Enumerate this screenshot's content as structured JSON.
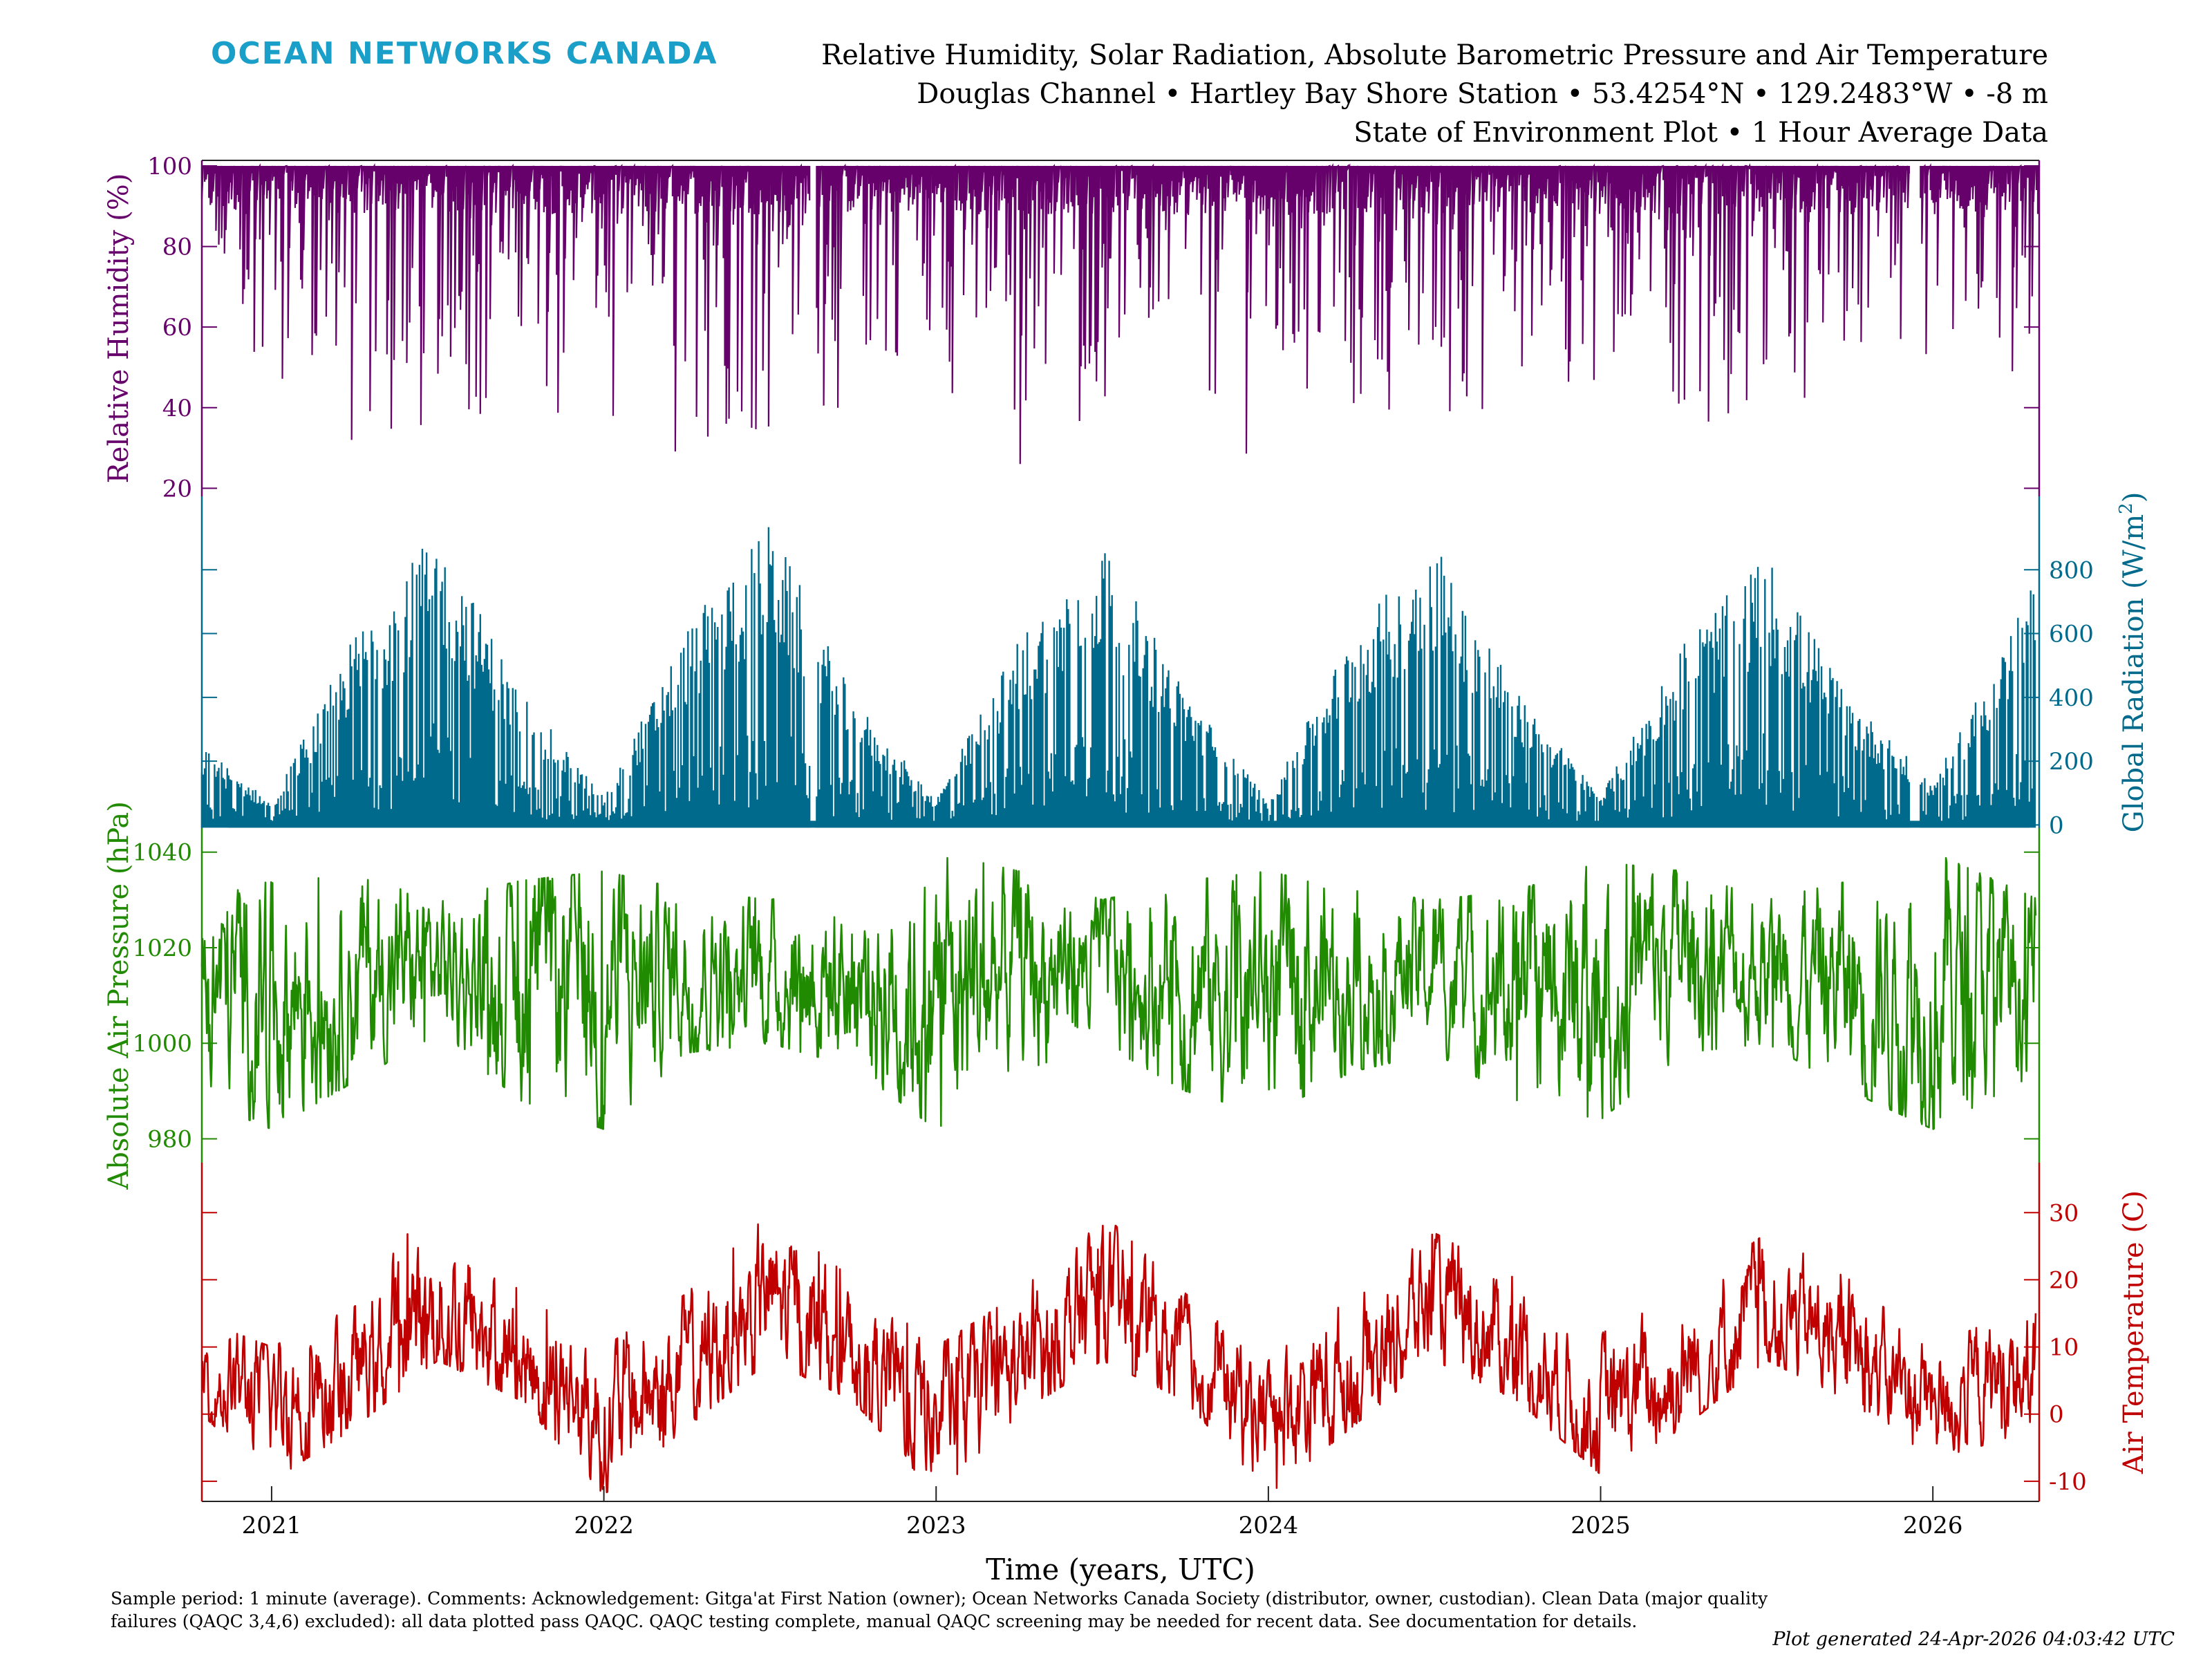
{
  "header": {
    "logo": "OCEAN NETWORKS CANADA",
    "title_line1": "Relative Humidity, Solar Radiation, Absolute Barometric Pressure and Air Temperature",
    "title_line2": "Douglas Channel • Hartley Bay Shore Station • 53.4254°N • 129.2483°W • -8 m",
    "title_line3": "State of Environment Plot • 1 Hour Average Data"
  },
  "footer": {
    "note": "Sample period: 1 minute (average). Comments: Acknowledgement: Gitga'at First Nation (owner); Ocean Networks Canada Society (distributor, owner, custodian). Clean Data (major quality failures (QAQC 3,4,6) excluded): all data plotted pass QAQC. QAQC testing complete, manual QAQC screening may be needed for recent data. See documentation for details.",
    "generated": "Plot generated 24-Apr-2026 04:03:42 UTC"
  },
  "chart_data": {
    "type": "line",
    "x_axis": {
      "label": "Time (years, UTC)",
      "range": [
        2020.79,
        2026.32
      ],
      "tick_labels": [
        "2021",
        "2022",
        "2023",
        "2024",
        "2025",
        "2026"
      ],
      "tick_values": [
        2021,
        2022,
        2023,
        2024,
        2025,
        2026
      ]
    },
    "panels": [
      {
        "name": "humidity",
        "ylabel": "Relative Humidity (%)",
        "axis_side": "left",
        "ylim": [
          18,
          100
        ],
        "ticks": [
          20,
          40,
          60,
          80,
          100
        ],
        "color": "#66006a",
        "style": "spiky_high",
        "series": {
          "x": [
            2020.79,
            2021.0,
            2021.25,
            2021.5,
            2021.75,
            2022.0,
            2022.25,
            2022.5,
            2022.75,
            2023.0,
            2023.25,
            2023.5,
            2023.75,
            2024.0,
            2024.25,
            2024.5,
            2024.75,
            2025.0,
            2025.25,
            2025.5,
            2025.75,
            2026.0,
            2026.32
          ],
          "typical_min": [
            72,
            60,
            45,
            55,
            60,
            58,
            50,
            55,
            60,
            62,
            52,
            55,
            60,
            55,
            50,
            55,
            60,
            62,
            50,
            55,
            60,
            62,
            60
          ],
          "extreme_min": [
            35,
            45,
            22,
            35,
            40,
            30,
            25,
            35,
            40,
            45,
            24,
            40,
            45,
            22,
            20,
            35,
            40,
            45,
            35,
            40,
            45,
            48,
            40
          ],
          "max": [
            100,
            100,
            100,
            100,
            100,
            100,
            100,
            100,
            100,
            100,
            100,
            100,
            100,
            100,
            100,
            100,
            100,
            100,
            100,
            100,
            100,
            100,
            100
          ]
        }
      },
      {
        "name": "solar",
        "ylabel": "Global Radiation (W/m²)",
        "ylabel_main": "Global Radiation (W/m",
        "ylabel_sup": "2",
        "ylabel_end": ")",
        "axis_side": "right",
        "ylim": [
          -10,
          1000
        ],
        "ticks": [
          0,
          200,
          400,
          600,
          800
        ],
        "color": "#006a8c",
        "style": "seasonal_bars",
        "series": {
          "x": [
            2020.79,
            2021.0,
            2021.25,
            2021.5,
            2021.75,
            2022.0,
            2022.25,
            2022.5,
            2022.75,
            2023.0,
            2023.25,
            2023.5,
            2023.75,
            2024.0,
            2024.25,
            2024.5,
            2024.75,
            2025.0,
            2025.25,
            2025.5,
            2025.75,
            2026.0,
            2026.32
          ],
          "daily_peak": [
            250,
            70,
            600,
            930,
            420,
            90,
            620,
            950,
            400,
            80,
            590,
            900,
            420,
            80,
            600,
            900,
            420,
            90,
            580,
            850,
            400,
            130,
            790
          ]
        }
      },
      {
        "name": "pressure",
        "ylabel": "Absolute Air Pressure (hPa)",
        "axis_side": "left",
        "ylim": [
          975,
          1043
        ],
        "ticks": [
          980,
          1000,
          1020,
          1040
        ],
        "color": "#208a00",
        "style": "wiggle",
        "series": {
          "x": [
            2020.79,
            2021.0,
            2021.25,
            2021.5,
            2021.75,
            2022.0,
            2022.25,
            2022.5,
            2022.75,
            2023.0,
            2023.25,
            2023.5,
            2023.75,
            2024.0,
            2024.25,
            2024.5,
            2024.75,
            2025.0,
            2025.25,
            2025.5,
            2025.75,
            2026.0,
            2026.32
          ],
          "mean": [
            1012,
            1010,
            1014,
            1016,
            1012,
            1012,
            1016,
            1015,
            1014,
            1010,
            1016,
            1016,
            1012,
            1010,
            1015,
            1015,
            1012,
            1010,
            1018,
            1016,
            1012,
            1012,
            1014
          ],
          "min": [
            988,
            982,
            992,
            1002,
            988,
            982,
            998,
            1000,
            995,
            982,
            994,
            1000,
            990,
            985,
            994,
            998,
            988,
            984,
            998,
            1000,
            990,
            982,
            994
          ],
          "max": [
            1030,
            1034,
            1035,
            1030,
            1034,
            1036,
            1032,
            1030,
            1034,
            1040,
            1036,
            1030,
            1034,
            1036,
            1032,
            1030,
            1032,
            1038,
            1036,
            1030,
            1034,
            1040,
            1030
          ]
        }
      },
      {
        "name": "temperature",
        "ylabel": "Air Temperature (C)",
        "axis_side": "right",
        "ylim": [
          -13,
          36
        ],
        "ticks": [
          -10,
          0,
          10,
          20,
          30
        ],
        "color": "#c00000",
        "style": "wiggle",
        "series": {
          "x": [
            2020.79,
            2021.0,
            2021.25,
            2021.5,
            2021.75,
            2022.0,
            2022.25,
            2022.5,
            2022.75,
            2023.0,
            2023.25,
            2023.5,
            2023.75,
            2024.0,
            2024.25,
            2024.5,
            2024.75,
            2025.0,
            2025.25,
            2025.5,
            2025.75,
            2026.0,
            2026.32
          ],
          "mean": [
            6,
            2,
            5,
            16,
            8,
            -1,
            6,
            17,
            9,
            -1,
            7,
            17,
            8,
            0,
            6,
            17,
            9,
            0,
            6,
            16,
            9,
            2,
            6
          ],
          "min": [
            0,
            -10,
            -2,
            8,
            2,
            -12,
            -2,
            8,
            2,
            -12,
            0,
            8,
            2,
            -12,
            -2,
            8,
            2,
            -9,
            -2,
            8,
            2,
            -7,
            -2
          ],
          "max": [
            14,
            10,
            16,
            33,
            18,
            10,
            18,
            30,
            20,
            10,
            18,
            30,
            18,
            8,
            18,
            27,
            20,
            12,
            18,
            27,
            20,
            10,
            17
          ]
        }
      }
    ]
  }
}
